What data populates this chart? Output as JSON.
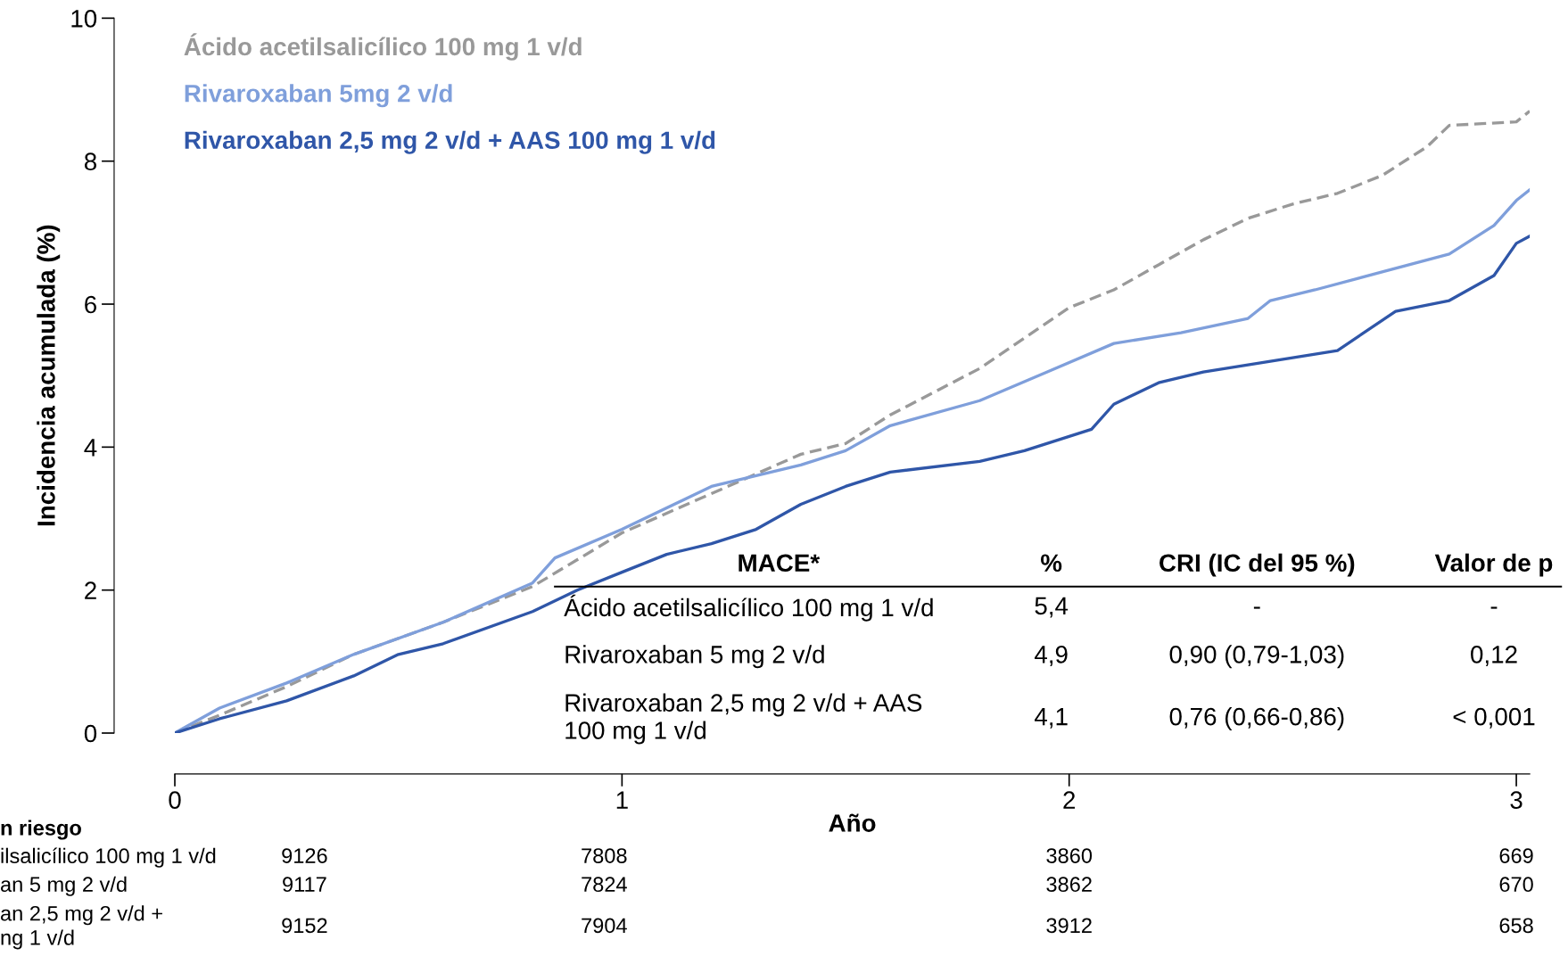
{
  "chart_data": {
    "type": "line",
    "xlabel": "Año",
    "ylabel": "Incidencia acumulada (%)",
    "xlim": [
      0,
      3.03
    ],
    "ylim": [
      0,
      10
    ],
    "xticks": [
      0,
      1,
      2,
      3
    ],
    "yticks": [
      0,
      2,
      4,
      6,
      8,
      10
    ],
    "grid": false,
    "legend": "top left",
    "series": [
      {
        "name": "Ácido acetilsalicílico 100 mg 1 v/d",
        "color": "#999999",
        "line_style": "dashed",
        "x": [
          0,
          0.1,
          0.25,
          0.4,
          0.6,
          0.8,
          1.0,
          1.2,
          1.4,
          1.5,
          1.6,
          1.8,
          2.0,
          2.1,
          2.2,
          2.3,
          2.4,
          2.5,
          2.6,
          2.7,
          2.8,
          2.85,
          3.0,
          3.03
        ],
        "values": [
          0,
          0.25,
          0.65,
          1.1,
          1.55,
          2.05,
          2.8,
          3.35,
          3.9,
          4.05,
          4.45,
          5.1,
          5.95,
          6.2,
          6.55,
          6.9,
          7.2,
          7.4,
          7.55,
          7.8,
          8.2,
          8.5,
          8.55,
          8.7
        ]
      },
      {
        "name": "Rivaroxaban 5mg 2 v/d",
        "color": "#7f9fdb",
        "line_style": "solid",
        "x": [
          0,
          0.1,
          0.25,
          0.4,
          0.6,
          0.8,
          0.85,
          1.0,
          1.2,
          1.4,
          1.5,
          1.6,
          1.8,
          1.95,
          2.1,
          2.25,
          2.4,
          2.45,
          2.55,
          2.7,
          2.85,
          2.95,
          3.0,
          3.03
        ],
        "values": [
          0,
          0.35,
          0.7,
          1.1,
          1.55,
          2.1,
          2.45,
          2.85,
          3.45,
          3.75,
          3.95,
          4.3,
          4.65,
          5.05,
          5.45,
          5.6,
          5.8,
          6.05,
          6.2,
          6.45,
          6.7,
          7.1,
          7.45,
          7.6
        ]
      },
      {
        "name": "Rivaroxaban 2,5 mg 2 v/d + AAS 100 mg 1 v/d",
        "color": "#2f56a8",
        "line_style": "solid",
        "x": [
          0,
          0.1,
          0.25,
          0.4,
          0.5,
          0.6,
          0.8,
          0.9,
          1.0,
          1.1,
          1.2,
          1.3,
          1.4,
          1.5,
          1.6,
          1.8,
          1.9,
          2.0,
          2.05,
          2.1,
          2.2,
          2.3,
          2.4,
          2.5,
          2.6,
          2.73,
          2.85,
          2.95,
          3.0,
          3.03
        ],
        "values": [
          0,
          0.2,
          0.45,
          0.8,
          1.1,
          1.25,
          1.7,
          2.0,
          2.25,
          2.5,
          2.65,
          2.85,
          3.2,
          3.45,
          3.65,
          3.8,
          3.95,
          4.15,
          4.25,
          4.6,
          4.9,
          5.05,
          5.15,
          5.25,
          5.35,
          5.9,
          6.05,
          6.4,
          6.85,
          6.95
        ]
      }
    ],
    "annotations": [
      "MACE*",
      "%",
      "CRI (IC del 95 %)",
      "Valor de p",
      "Ácido acetilsalicílico 100 mg 1 v/d",
      "5,4",
      "-",
      "-",
      "Rivaroxaban 5 mg 2 v/d",
      "4,9",
      "0,90 (0,79-1,03)",
      "0,12",
      "Rivaroxaban 2,5 mg 2 v/d + AAS\n100 mg 1 v/d",
      "4,1",
      "0,76 (0,66-0,86)",
      "< 0,001",
      "n riesgo",
      "ilsalicílico 100 mg 1 v/d",
      "9126",
      "7808",
      "3860",
      "669",
      "an 5 mg 2 v/d",
      "9117",
      "7824",
      "3862",
      "670",
      "an 2,5 mg 2 v/d +\nng 1 v/d",
      "9152",
      "7904",
      "3912",
      "658"
    ]
  }
}
